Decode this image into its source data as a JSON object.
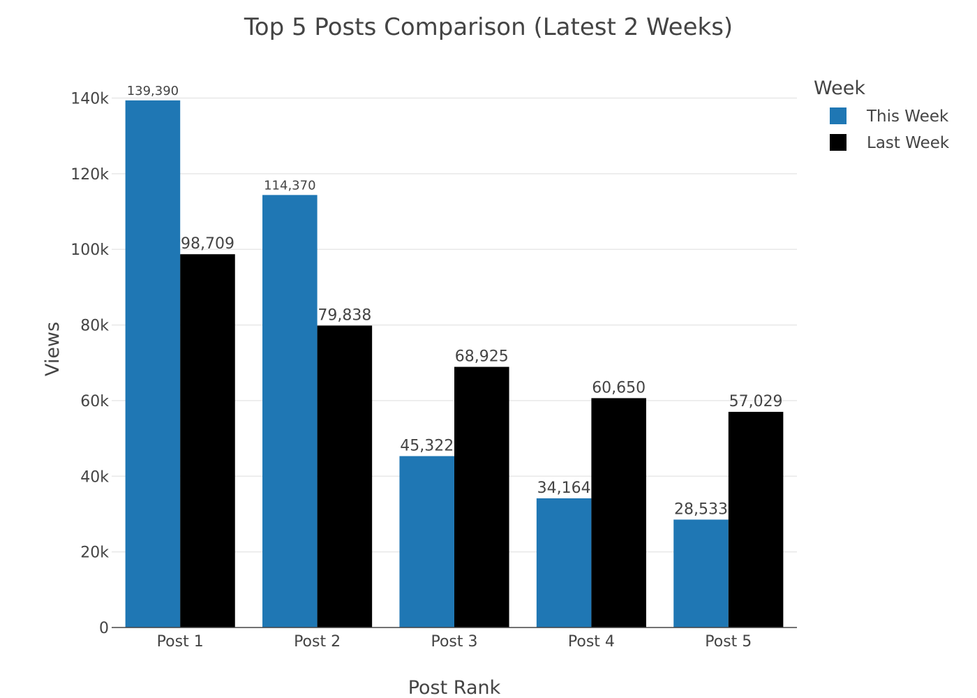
{
  "chart_data": {
    "type": "bar",
    "title": "Top 5 Posts Comparison (Latest 2 Weeks)",
    "xlabel": "Post Rank",
    "ylabel": "Views",
    "categories": [
      "Post 1",
      "Post 2",
      "Post 3",
      "Post 4",
      "Post 5"
    ],
    "series": [
      {
        "name": "This Week",
        "color": "#1f77b4",
        "values": [
          139390,
          114370,
          45322,
          34164,
          28533
        ],
        "labels": [
          "139,390",
          "114,370",
          "45,322",
          "34,164",
          "28,533"
        ]
      },
      {
        "name": "Last Week",
        "color": "#000000",
        "values": [
          98709,
          79838,
          68925,
          60650,
          57029
        ],
        "labels": [
          "98,709",
          "79,838",
          "68,925",
          "60,650",
          "57,029"
        ]
      }
    ],
    "ylim": [
      0,
      146000
    ],
    "yticks": [
      0,
      20000,
      40000,
      60000,
      80000,
      100000,
      120000,
      140000
    ],
    "ytick_labels": [
      "0",
      "20k",
      "40k",
      "60k",
      "80k",
      "100k",
      "120k",
      "140k"
    ],
    "grid": true,
    "legend": {
      "title": "Week",
      "position": "top-right"
    }
  }
}
